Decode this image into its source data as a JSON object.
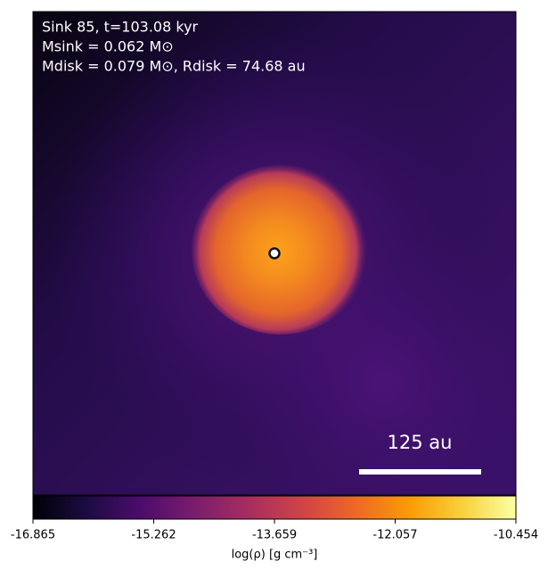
{
  "chart_data": {
    "type": "image",
    "annotations": [
      "Sink 85, t=103.08 kyr",
      "Msink = 0.062 M⊙",
      "Mdisk = 0.079 M⊙, Rdisk = 74.68 au"
    ],
    "scale_bar_label": "125 au",
    "colorbar_label": "log(ρ) [g cm⁻³]",
    "colorbar_lim": [
      -16.865,
      -10.454
    ],
    "colorbar_ticks": [
      -16.865,
      -15.262,
      -13.659,
      -12.057,
      -10.454
    ]
  }
}
